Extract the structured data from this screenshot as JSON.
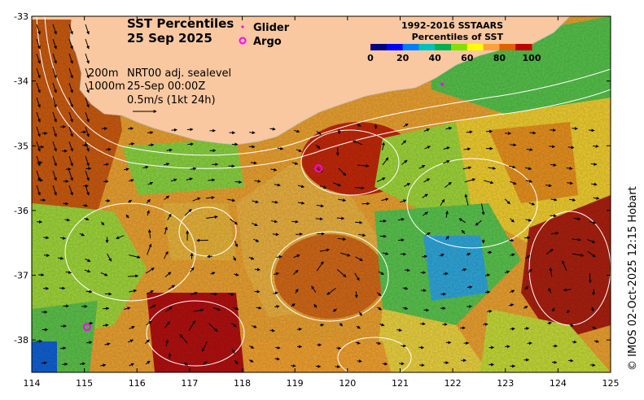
{
  "title": {
    "line1": "SST Percentiles",
    "line2": "25 Sep 2025"
  },
  "legend": {
    "glider_label": "Glider",
    "argo_label": "Argo",
    "glider_color": "#ff00ff",
    "argo_color": "#ff00ff"
  },
  "colorbar": {
    "title1": "1992-2016 SSTAARS",
    "title2": "Percentiles of SST",
    "ticks": [
      "0",
      "20",
      "40",
      "60",
      "80",
      "100"
    ],
    "colors": [
      "#000080",
      "#0000ff",
      "#0080ff",
      "#00c0c0",
      "#00b050",
      "#80e000",
      "#ffff00",
      "#ffa040",
      "#e06000",
      "#c00000"
    ]
  },
  "annotations": {
    "contour_200": "200m",
    "contour_1000": "1000m",
    "source": "NRT00 adj. sealevel",
    "time": "25-Sep 00:00Z",
    "scale": "0.5m/s (1kt 24h)"
  },
  "axes": {
    "x_ticks": [
      "114",
      "115",
      "116",
      "117",
      "118",
      "119",
      "120",
      "121",
      "122",
      "123",
      "124",
      "125"
    ],
    "y_ticks": [
      "-33",
      "-34",
      "-35",
      "-36",
      "-37",
      "-38"
    ],
    "xlim": [
      114,
      125
    ],
    "ylim": [
      -38.5,
      -33
    ]
  },
  "credit": "© IMOS 02-Oct-2025 12:15 Hobart",
  "markers": {
    "argo": [
      [
        119.45,
        -35.35
      ],
      [
        115.05,
        -37.8
      ]
    ],
    "glider": [
      [
        121.8,
        -34.05
      ]
    ]
  },
  "colors": {
    "land": "#f9c8a0",
    "white_contour": "#ffffff"
  }
}
